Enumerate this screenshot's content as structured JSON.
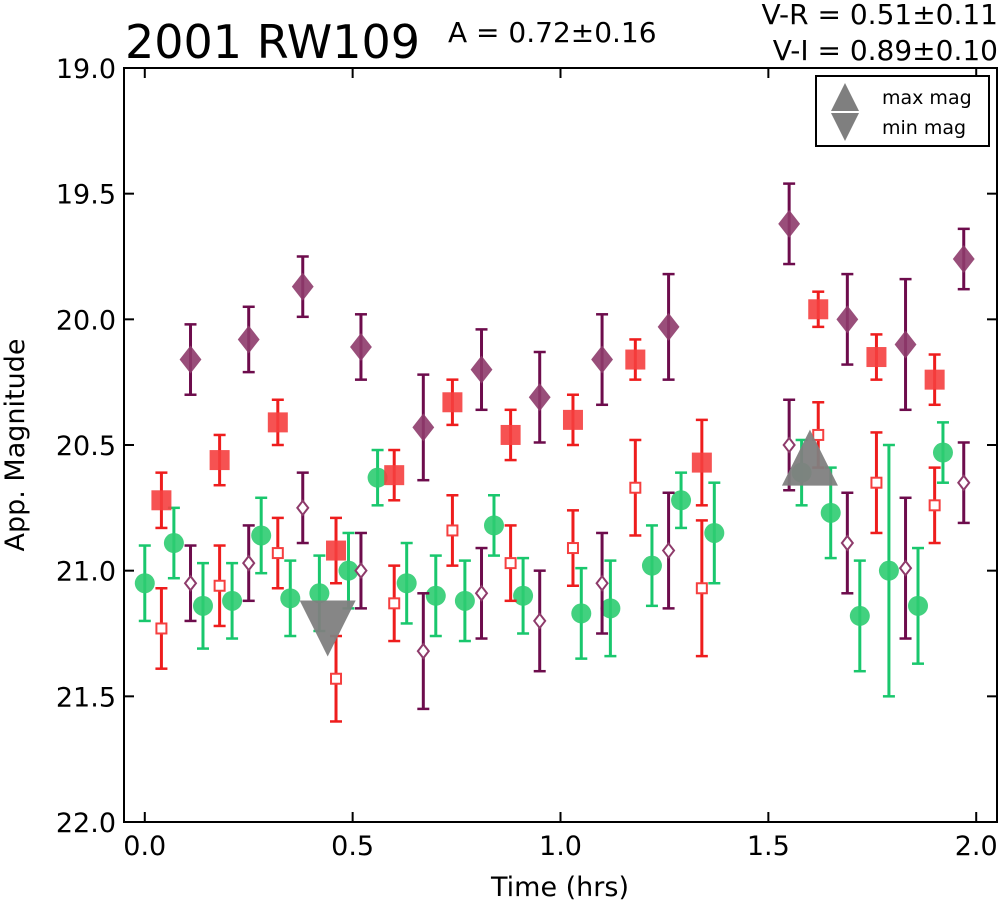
{
  "chart_data": {
    "type": "scatter",
    "title": "2001 RW109",
    "annotations": {
      "amplitude": "A  = 0.72±0.16",
      "v_r": "V-R = 0.51±0.11",
      "v_i": "V-I  = 0.89±0.10"
    },
    "xlabel": "Time (hrs)",
    "ylabel": "App. Magnitude",
    "xlim": [
      -0.05,
      2.05
    ],
    "ylim": [
      22.0,
      19.0
    ],
    "y_inverted": true,
    "grid": false,
    "xticks": [
      0.0,
      0.5,
      1.0,
      1.5,
      2.0
    ],
    "xtick_labels": [
      "0.0",
      "0.5",
      "1.0",
      "1.5",
      "2.0"
    ],
    "yticks": [
      19.0,
      19.5,
      20.0,
      20.5,
      21.0,
      21.5,
      22.0
    ],
    "ytick_labels": [
      "19.0",
      "19.5",
      "20.0",
      "20.5",
      "21.0",
      "21.5",
      "22.0"
    ],
    "legend": {
      "placement": "top-right",
      "entries": [
        {
          "label": "max mag",
          "marker": "triangle-up",
          "color": "#7f7f7f"
        },
        {
          "label": "min mag",
          "marker": "triangle-down",
          "color": "#7f7f7f"
        }
      ]
    },
    "markers": [
      {
        "name": "max mag",
        "shape": "triangle-up",
        "color": "#7f7f7f",
        "x": 1.6,
        "y": 20.55
      },
      {
        "name": "min mag",
        "shape": "triangle-down",
        "color": "#7f7f7f",
        "x": 0.44,
        "y": 21.23
      }
    ],
    "series": [
      {
        "shape": "circle",
        "filled": true,
        "color": "#2ecc71",
        "ecolor": "#19c76d",
        "points": [
          [
            0.0,
            21.05,
            0.15
          ],
          [
            0.07,
            20.89,
            0.14
          ],
          [
            0.14,
            21.14,
            0.17
          ],
          [
            0.21,
            21.12,
            0.15
          ],
          [
            0.28,
            20.86,
            0.15
          ],
          [
            0.35,
            21.11,
            0.15
          ],
          [
            0.42,
            21.09,
            0.15
          ],
          [
            0.49,
            21.0,
            0.15
          ],
          [
            0.56,
            20.63,
            0.11
          ],
          [
            0.63,
            21.05,
            0.16
          ],
          [
            0.7,
            21.1,
            0.16
          ],
          [
            0.77,
            21.12,
            0.16
          ],
          [
            0.84,
            20.82,
            0.12
          ],
          [
            0.91,
            21.1,
            0.15
          ],
          [
            1.05,
            21.17,
            0.18
          ],
          [
            1.12,
            21.15,
            0.19
          ],
          [
            1.22,
            20.98,
            0.16
          ],
          [
            1.29,
            20.72,
            0.11
          ],
          [
            1.37,
            20.85,
            0.2
          ],
          [
            1.58,
            20.61,
            0.13
          ],
          [
            1.65,
            20.77,
            0.18
          ],
          [
            1.72,
            21.18,
            0.22
          ],
          [
            1.79,
            21.0,
            0.5
          ],
          [
            1.86,
            21.14,
            0.23
          ],
          [
            1.92,
            20.53,
            0.12
          ]
        ]
      },
      {
        "shape": "square",
        "filled": true,
        "color": "#f53f3f",
        "ecolor": "#ee1d1d",
        "points": [
          [
            0.04,
            20.72,
            0.11
          ],
          [
            0.18,
            20.56,
            0.1
          ],
          [
            0.32,
            20.41,
            0.09
          ],
          [
            0.46,
            20.92,
            0.13
          ],
          [
            0.6,
            20.62,
            0.1
          ],
          [
            0.74,
            20.33,
            0.09
          ],
          [
            0.88,
            20.46,
            0.1
          ],
          [
            1.03,
            20.4,
            0.1
          ],
          [
            1.18,
            20.16,
            0.08
          ],
          [
            1.34,
            20.57,
            0.17
          ],
          [
            1.62,
            19.96,
            0.07
          ],
          [
            1.76,
            20.15,
            0.09
          ],
          [
            1.9,
            20.24,
            0.1
          ]
        ]
      },
      {
        "shape": "square",
        "filled": false,
        "color": "#f53f3f",
        "ecolor": "#ee1d1d",
        "points": [
          [
            0.04,
            21.23,
            0.16
          ],
          [
            0.18,
            21.06,
            0.16
          ],
          [
            0.32,
            20.93,
            0.14
          ],
          [
            0.46,
            21.43,
            0.17
          ],
          [
            0.6,
            21.13,
            0.15
          ],
          [
            0.74,
            20.84,
            0.14
          ],
          [
            0.88,
            20.97,
            0.15
          ],
          [
            1.03,
            20.91,
            0.15
          ],
          [
            1.18,
            20.67,
            0.19
          ],
          [
            1.34,
            21.07,
            0.27
          ],
          [
            1.62,
            20.46,
            0.13
          ],
          [
            1.76,
            20.65,
            0.2
          ],
          [
            1.9,
            20.74,
            0.15
          ]
        ]
      },
      {
        "shape": "diamond",
        "filled": true,
        "color": "#8e3b6b",
        "ecolor": "#6d0c4c",
        "points": [
          [
            0.11,
            20.16,
            0.14
          ],
          [
            0.25,
            20.08,
            0.13
          ],
          [
            0.38,
            19.87,
            0.12
          ],
          [
            0.52,
            20.11,
            0.13
          ],
          [
            0.67,
            20.43,
            0.21
          ],
          [
            0.81,
            20.2,
            0.16
          ],
          [
            0.95,
            20.31,
            0.18
          ],
          [
            1.1,
            20.16,
            0.18
          ],
          [
            1.26,
            20.03,
            0.21
          ],
          [
            1.55,
            19.62,
            0.16
          ],
          [
            1.69,
            20.0,
            0.18
          ],
          [
            1.83,
            20.1,
            0.26
          ],
          [
            1.97,
            19.76,
            0.12
          ]
        ]
      },
      {
        "shape": "diamond",
        "filled": false,
        "color": "#8e3b6b",
        "ecolor": "#6d0c4c",
        "points": [
          [
            0.11,
            21.05,
            0.15
          ],
          [
            0.25,
            20.97,
            0.15
          ],
          [
            0.38,
            20.75,
            0.14
          ],
          [
            0.52,
            21.0,
            0.15
          ],
          [
            0.67,
            21.32,
            0.23
          ],
          [
            0.81,
            21.09,
            0.18
          ],
          [
            0.95,
            21.2,
            0.2
          ],
          [
            1.1,
            21.05,
            0.2
          ],
          [
            1.26,
            20.92,
            0.23
          ],
          [
            1.55,
            20.5,
            0.18
          ],
          [
            1.69,
            20.89,
            0.2
          ],
          [
            1.83,
            20.99,
            0.28
          ],
          [
            1.97,
            20.65,
            0.16
          ]
        ]
      }
    ]
  }
}
